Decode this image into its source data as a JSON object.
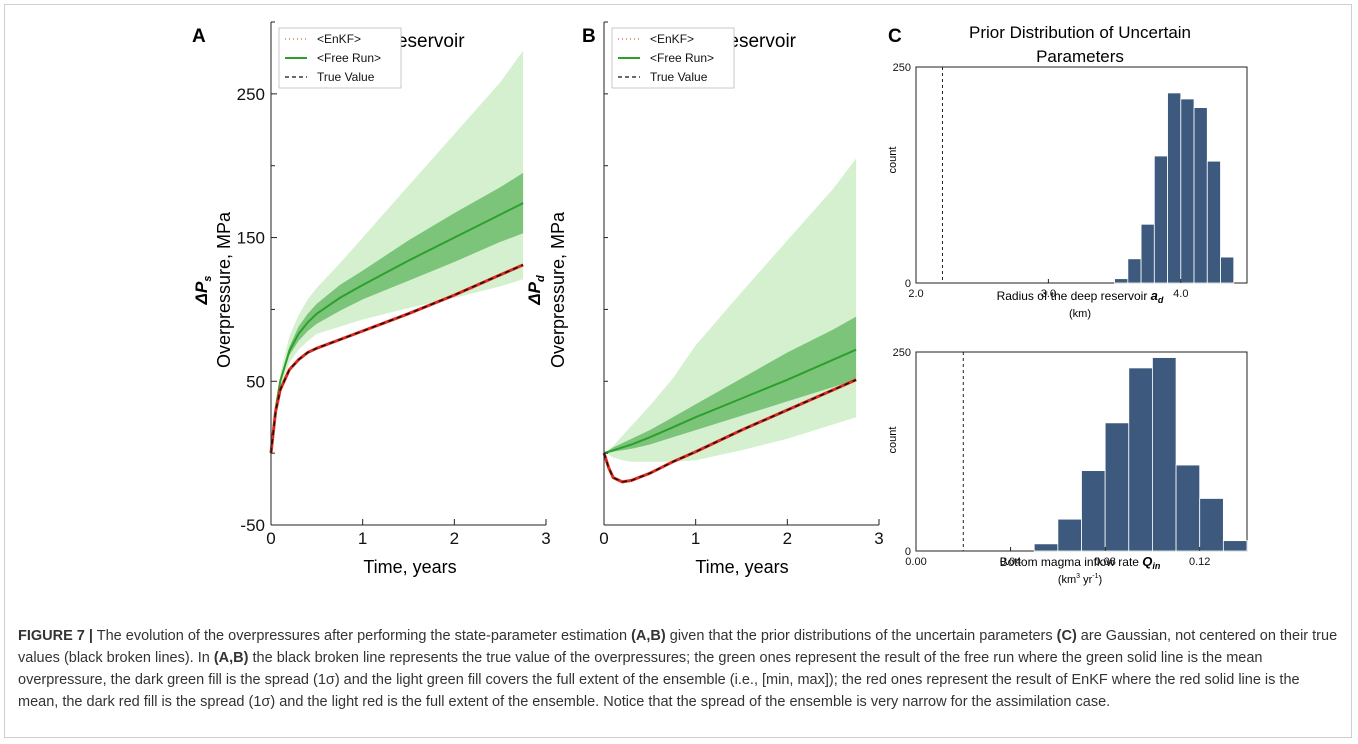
{
  "figure": {
    "panels": [
      {
        "letter": "A",
        "title": "Shallow Reservoir",
        "ylabel_sym": "ΔP",
        "ylabel_sub": "s",
        "ylabel": "Overpressure, MPa",
        "xlabel": "Time, years"
      },
      {
        "letter": "B",
        "title": "Deep Reservoir",
        "ylabel_sym": "ΔP",
        "ylabel_sub": "d",
        "ylabel": "Overpressure, MPa",
        "xlabel": "Time, years"
      },
      {
        "letter": "C",
        "title_line1": "Prior Distribution of Uncertain",
        "title_line2": "Parameters"
      }
    ],
    "legend": {
      "enkf": "<EnKF>",
      "free_run": "<Free Run>",
      "true_value": "True Value"
    },
    "hist1": {
      "ylabel": "count",
      "xlabel": "Radius of the deep reservoir ",
      "xlabel_sym": "a",
      "xlabel_sub": "d",
      "unit": "(km)"
    },
    "hist2": {
      "ylabel": "count",
      "xlabel": "Bottom magma inflow rate ",
      "xlabel_sym": "Q",
      "xlabel_sub": "in",
      "unit_pre": "(km",
      "unit_sup1": "3",
      "unit_mid": " yr",
      "unit_sup2": "-1",
      "unit_post": ")"
    }
  },
  "caption": {
    "label": "FIGURE 7 |",
    "t1": " The evolution of the overpressures after performing the state-parameter estimation ",
    "b1": "(A,B)",
    "t2": " given that the prior distributions of the uncertain parameters ",
    "b2": "(C)",
    "t3": " are Gaussian, not centered on their true values (black broken lines). In ",
    "b3": "(A,B)",
    "t4": " the black broken line represents the true value of the overpressures; the green ones represent the result of the free run where the green solid line is the mean overpressure, the dark green fill is the spread (1σ) and the light green fill covers the full extent of the ensemble (i.e., [min, max]); the red ones represent the result of EnKF where the red solid line is the mean, the dark red fill is the spread (1σ) and the light red is the full extent of the ensemble. Notice that the spread of the ensemble is very narrow for the assimilation case."
  },
  "colors": {
    "light_green": "#d4f0cf",
    "dark_green": "#7cc47a",
    "green_line": "#2ca02c",
    "red_line": "#e0291c",
    "bar": "#3d5a7e",
    "bar_edge": "#ffffff"
  },
  "chart_data": [
    {
      "type": "line",
      "panel": "A",
      "title": "Shallow Reservoir",
      "xlabel": "Time, years",
      "ylabel": "ΔPs Overpressure, MPa",
      "xlim": [
        0,
        3
      ],
      "ylim": [
        -50,
        300
      ],
      "xticks": [
        0,
        1,
        2,
        3
      ],
      "yticks": [
        -50,
        50,
        150,
        250
      ],
      "legend": "top-left",
      "x": [
        0,
        0.05,
        0.1,
        0.2,
        0.3,
        0.4,
        0.5,
        0.75,
        1.0,
        1.5,
        2.0,
        2.5,
        2.75
      ],
      "series": [
        {
          "name": "<Free Run>",
          "values": [
            0,
            31,
            50,
            71,
            83,
            91,
            97,
            108,
            117,
            134,
            150,
            166,
            174
          ],
          "sigma_low": [
            0,
            30,
            48,
            68,
            78,
            85,
            90,
            99,
            107,
            120,
            133,
            147,
            153
          ],
          "sigma_high": [
            0,
            32,
            52,
            74,
            88,
            97,
            104,
            117,
            127,
            148,
            167,
            185,
            195
          ],
          "min": [
            0,
            28,
            45,
            63,
            72,
            78,
            83,
            88,
            93,
            101,
            108,
            116,
            121
          ],
          "max": [
            0,
            33,
            55,
            81,
            96,
            107,
            115,
            132,
            150,
            186,
            222,
            258,
            280
          ]
        },
        {
          "name": "<EnKF>",
          "values": [
            0,
            29,
            44,
            58,
            65,
            70,
            73,
            79,
            85,
            97,
            110,
            124,
            131
          ]
        },
        {
          "name": "True Value",
          "values": [
            0,
            29,
            44,
            58,
            65,
            70,
            73,
            79,
            85,
            97,
            110,
            124,
            131
          ]
        }
      ]
    },
    {
      "type": "line",
      "panel": "B",
      "title": "Deep Reservoir",
      "xlabel": "Time, years",
      "ylabel": "ΔPd Overpressure, MPa",
      "xlim": [
        0,
        3
      ],
      "ylim": [
        -50,
        300
      ],
      "xticks": [
        0,
        1,
        2,
        3
      ],
      "legend": "top-left",
      "x": [
        0,
        0.05,
        0.1,
        0.2,
        0.3,
        0.5,
        0.75,
        1.0,
        1.5,
        2.0,
        2.5,
        2.75
      ],
      "series": [
        {
          "name": "<Free Run>",
          "values": [
            0,
            1,
            2,
            4,
            6,
            11,
            18,
            25,
            38,
            51,
            65,
            72
          ],
          "sigma_low": [
            0,
            0,
            1,
            2,
            3,
            6,
            11,
            16,
            26,
            36,
            46,
            51
          ],
          "sigma_high": [
            0,
            2,
            4,
            7,
            10,
            16,
            25,
            34,
            52,
            70,
            86,
            95
          ],
          "min": [
            0,
            -1,
            -3,
            -5,
            -6,
            -6,
            -6,
            -5,
            2,
            10,
            20,
            25
          ],
          "max": [
            0,
            2,
            5,
            12,
            19,
            33,
            52,
            75,
            112,
            148,
            184,
            205
          ]
        },
        {
          "name": "<EnKF>",
          "values": [
            0,
            -10,
            -17,
            -20,
            -19,
            -14,
            -6,
            1,
            16,
            30,
            44,
            51
          ]
        },
        {
          "name": "True Value",
          "values": [
            0,
            -10,
            -17,
            -20,
            -19,
            -14,
            -6,
            1,
            16,
            30,
            44,
            51
          ]
        }
      ]
    },
    {
      "type": "bar",
      "panel": "C-top",
      "title": "Prior Distribution of Uncertain Parameters",
      "xlabel": "Radius of the deep reservoir ad (km)",
      "ylabel": "count",
      "xlim": [
        2.0,
        4.5
      ],
      "ylim": [
        0,
        250
      ],
      "xticks": [
        2.0,
        3.0,
        4.0
      ],
      "yticks": [
        0,
        250
      ],
      "true_value": 2.2,
      "bin_edges": [
        3.5,
        3.6,
        3.7,
        3.8,
        3.9,
        4.0,
        4.1,
        4.2,
        4.3,
        4.4
      ],
      "values": [
        5,
        28,
        68,
        147,
        220,
        213,
        203,
        141,
        30
      ]
    },
    {
      "type": "bar",
      "panel": "C-bottom",
      "xlabel": "Bottom magma inflow rate Qin (km3 yr-1)",
      "ylabel": "count",
      "xlim": [
        0.0,
        0.14
      ],
      "ylim": [
        0,
        250
      ],
      "xticks": [
        0.0,
        0.04,
        0.08,
        0.12
      ],
      "xtick_labels": [
        "0.00",
        "0.04",
        "0.08",
        "0.12"
      ],
      "yticks": [
        0,
        250
      ],
      "true_value": 0.02,
      "bin_edges": [
        0.05,
        0.06,
        0.07,
        0.08,
        0.09,
        0.1,
        0.11,
        0.12,
        0.13,
        0.14
      ],
      "values": [
        9,
        40,
        101,
        161,
        230,
        243,
        108,
        66,
        13
      ]
    }
  ]
}
